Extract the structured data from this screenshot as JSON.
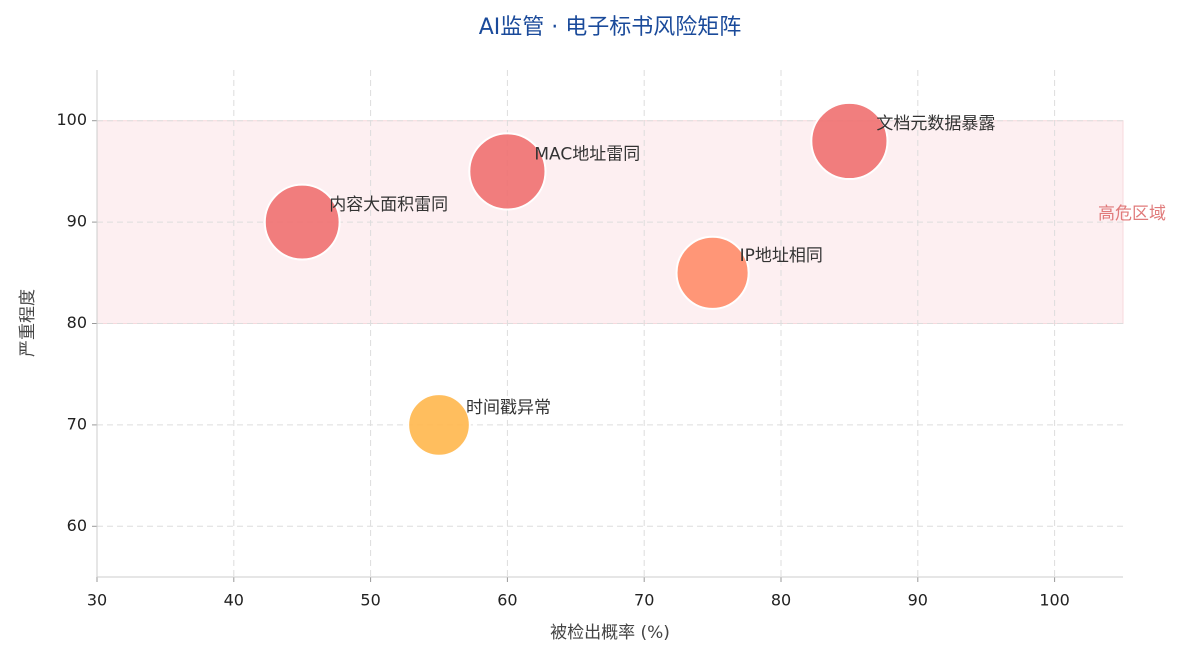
{
  "chart_data": {
    "type": "bubble",
    "title": "AI监管 · 电子标书风险矩阵",
    "x_label": "被检出概率 (%)",
    "y_label": "严重程度",
    "labels": [
      "内容大面积雷同",
      "MAC地址雷同",
      "文档元数据暴露",
      "IP地址相同",
      "时间戳异常"
    ],
    "x": [
      45,
      60,
      85,
      75,
      55
    ],
    "values": [
      90,
      95,
      98,
      85,
      70
    ],
    "sizes": [
      1400,
      1450,
      1450,
      1300,
      950
    ],
    "colors": [
      "#f07070",
      "#f07070",
      "#f07070",
      "#ff8c69",
      "#ffb74d"
    ],
    "xlim": [
      30,
      105
    ],
    "xticks": [
      30,
      40,
      50,
      60,
      70,
      80,
      90,
      100
    ],
    "ylim": [
      55,
      105
    ],
    "yticks": [
      60,
      70,
      80,
      90,
      100
    ],
    "grid": true,
    "band": {
      "range": [
        80,
        100
      ],
      "label": "高危区域",
      "color": "#fde8ea"
    }
  }
}
